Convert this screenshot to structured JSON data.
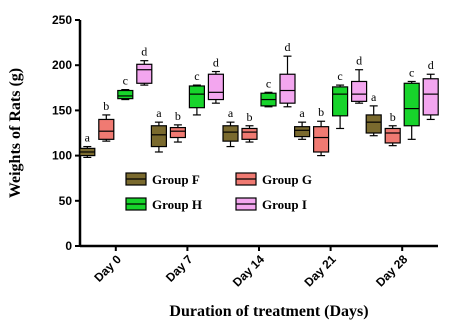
{
  "chart_data": {
    "type": "box",
    "title": "",
    "xlabel": "Duration of treatment (Days)",
    "ylabel": "Weights of Rats (g)",
    "ylim": [
      0,
      250
    ],
    "yticks": [
      "0",
      "50",
      "100",
      "150",
      "200",
      "250"
    ],
    "grid": false,
    "legend_position": "inside-bottom-right",
    "categories": [
      "Day 0",
      "Day 7",
      "Day 14",
      "Day 21",
      "Day 28"
    ],
    "series": [
      {
        "name": "Group F",
        "color": "#7a6a2e",
        "boxes": [
          {
            "min": 98,
            "q1": 100,
            "median": 104,
            "q3": 108,
            "max": 110,
            "letter": "a"
          },
          {
            "min": 104,
            "q1": 110,
            "median": 123,
            "q3": 133,
            "max": 137,
            "letter": "a"
          },
          {
            "min": 110,
            "q1": 116,
            "median": 126,
            "q3": 133,
            "max": 137,
            "letter": "a"
          },
          {
            "min": 118,
            "q1": 121,
            "median": 128,
            "q3": 132,
            "max": 137,
            "letter": "a"
          },
          {
            "min": 122,
            "q1": 125,
            "median": 137,
            "q3": 145,
            "max": 155,
            "letter": "a"
          }
        ]
      },
      {
        "name": "Group G",
        "color": "#f07a72",
        "boxes": [
          {
            "min": 116,
            "q1": 118,
            "median": 127,
            "q3": 140,
            "max": 145,
            "letter": "b"
          },
          {
            "min": 115,
            "q1": 120,
            "median": 127,
            "q3": 131,
            "max": 134,
            "letter": "b"
          },
          {
            "min": 115,
            "q1": 118,
            "median": 126,
            "q3": 130,
            "max": 133,
            "letter": "b"
          },
          {
            "min": 100,
            "q1": 104,
            "median": 120,
            "q3": 132,
            "max": 138,
            "letter": "b"
          },
          {
            "min": 111,
            "q1": 114,
            "median": 125,
            "q3": 130,
            "max": 133,
            "letter": "b"
          }
        ]
      },
      {
        "name": "Group H",
        "color": "#17d42b",
        "boxes": [
          {
            "min": 162,
            "q1": 163,
            "median": 166,
            "q3": 172,
            "max": 173,
            "letter": "c"
          },
          {
            "min": 145,
            "q1": 153,
            "median": 168,
            "q3": 177,
            "max": 178,
            "letter": "c"
          },
          {
            "min": 154,
            "q1": 155,
            "median": 162,
            "q3": 169,
            "max": 170,
            "letter": "c"
          },
          {
            "min": 130,
            "q1": 144,
            "median": 168,
            "q3": 176,
            "max": 178,
            "letter": "c"
          },
          {
            "min": 118,
            "q1": 133,
            "median": 152,
            "q3": 180,
            "max": 182,
            "letter": "c"
          }
        ]
      },
      {
        "name": "Group I",
        "color": "#f3a6ef",
        "boxes": [
          {
            "min": 178,
            "q1": 180,
            "median": 195,
            "q3": 201,
            "max": 205,
            "letter": "d"
          },
          {
            "min": 158,
            "q1": 162,
            "median": 170,
            "q3": 190,
            "max": 193,
            "letter": "d"
          },
          {
            "min": 154,
            "q1": 158,
            "median": 172,
            "q3": 190,
            "max": 210,
            "letter": "d"
          },
          {
            "min": 158,
            "q1": 160,
            "median": 168,
            "q3": 182,
            "max": 195,
            "letter": "d"
          },
          {
            "min": 140,
            "q1": 145,
            "median": 168,
            "q3": 185,
            "max": 190,
            "letter": "d"
          }
        ]
      }
    ]
  }
}
